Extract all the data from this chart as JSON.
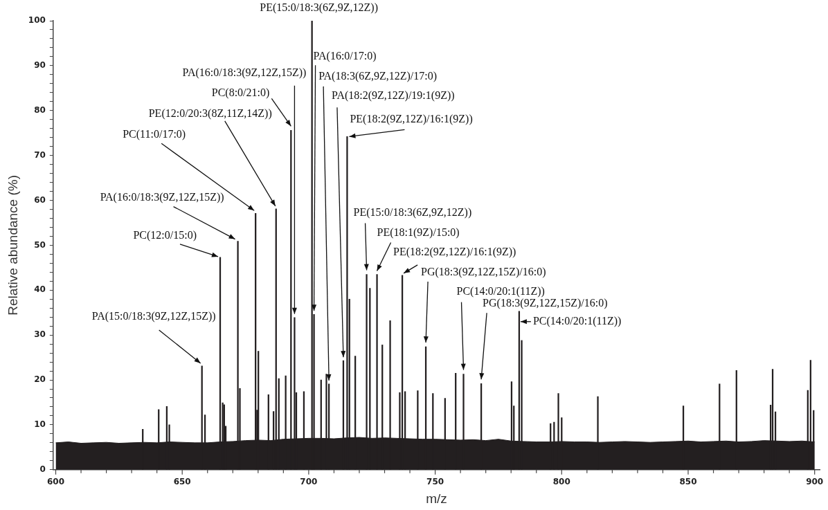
{
  "chart_data": {
    "type": "bar",
    "xlabel": "m/z",
    "ylabel": "Relative abundance (%)",
    "xlim": [
      599,
      902
    ],
    "ylim": [
      0,
      100
    ],
    "xticks": [
      600,
      {
        "value": 610,
        "label": null
      },
      {
        "value": 620,
        "label": null
      },
      {
        "value": 630,
        "label": null
      },
      {
        "value": 640,
        "label": null
      },
      650,
      {
        "value": 660,
        "label": null
      },
      {
        "value": 670,
        "label": null
      },
      {
        "value": 680,
        "label": null
      },
      {
        "value": 690,
        "label": null
      },
      700,
      {
        "value": 710,
        "label": null
      },
      {
        "value": 720,
        "label": null
      },
      {
        "value": 730,
        "label": null
      },
      {
        "value": 740,
        "label": null
      },
      750,
      {
        "value": 760,
        "label": null
      },
      {
        "value": 770,
        "label": null
      },
      {
        "value": 780,
        "label": null
      },
      {
        "value": 790,
        "label": null
      },
      800,
      {
        "value": 810,
        "label": null
      },
      {
        "value": 820,
        "label": null
      },
      {
        "value": 830,
        "label": null
      },
      {
        "value": 840,
        "label": null
      },
      850,
      {
        "value": 860,
        "label": null
      },
      {
        "value": 870,
        "label": null
      },
      {
        "value": 880,
        "label": null
      },
      {
        "value": 890,
        "label": null
      },
      900
    ],
    "yticks": [
      0,
      {
        "value": 2,
        "label": null
      },
      {
        "value": 4,
        "label": null
      },
      {
        "value": 6,
        "label": null
      },
      {
        "value": 8,
        "label": null
      },
      10,
      {
        "value": 12,
        "label": null
      },
      {
        "value": 14,
        "label": null
      },
      {
        "value": 16,
        "label": null
      },
      {
        "value": 18,
        "label": null
      },
      20,
      {
        "value": 22,
        "label": null
      },
      {
        "value": 24,
        "label": null
      },
      {
        "value": 26,
        "label": null
      },
      {
        "value": 28,
        "label": null
      },
      30,
      {
        "value": 32,
        "label": null
      },
      {
        "value": 34,
        "label": null
      },
      {
        "value": 36,
        "label": null
      },
      {
        "value": 38,
        "label": null
      },
      40,
      {
        "value": 42,
        "label": null
      },
      {
        "value": 44,
        "label": null
      },
      {
        "value": 46,
        "label": null
      },
      {
        "value": 48,
        "label": null
      },
      50,
      {
        "value": 52,
        "label": null
      },
      {
        "value": 54,
        "label": null
      },
      {
        "value": 56,
        "label": null
      },
      {
        "value": 58,
        "label": null
      },
      60,
      {
        "value": 62,
        "label": null
      },
      {
        "value": 64,
        "label": null
      },
      {
        "value": 66,
        "label": null
      },
      {
        "value": 68,
        "label": null
      },
      70,
      {
        "value": 72,
        "label": null
      },
      {
        "value": 74,
        "label": null
      },
      {
        "value": 76,
        "label": null
      },
      {
        "value": 78,
        "label": null
      },
      80,
      {
        "value": 82,
        "label": null
      },
      {
        "value": 84,
        "label": null
      },
      {
        "value": 86,
        "label": null
      },
      {
        "value": 88,
        "label": null
      },
      90,
      {
        "value": 92,
        "label": null
      },
      {
        "value": 94,
        "label": null
      },
      {
        "value": 96,
        "label": null
      },
      {
        "value": 98,
        "label": null
      },
      100
    ],
    "grid": false,
    "legend": false,
    "series": [
      {
        "type": "area",
        "color": "#231f20",
        "x": [
          600,
          605,
          610,
          615,
          620,
          625,
          630,
          635,
          640,
          645,
          650,
          655,
          660,
          665,
          670,
          675,
          680,
          685,
          690,
          695,
          700,
          705,
          710,
          715,
          720,
          725,
          730,
          735,
          740,
          745,
          750,
          755,
          760,
          765,
          770,
          775,
          780,
          785,
          790,
          795,
          800,
          805,
          810,
          815,
          820,
          825,
          830,
          835,
          840,
          845,
          850,
          855,
          860,
          865,
          870,
          875,
          880,
          885,
          890,
          895,
          900
        ],
        "values": [
          6.0,
          6.2,
          5.9,
          6.0,
          6.1,
          5.9,
          6.0,
          6.1,
          6.0,
          6.2,
          6.1,
          6.0,
          6.0,
          6.2,
          6.3,
          6.5,
          6.6,
          6.5,
          6.8,
          6.9,
          7.0,
          7.0,
          6.9,
          7.1,
          7.2,
          7.0,
          7.1,
          7.0,
          6.9,
          6.8,
          6.8,
          6.7,
          6.6,
          6.7,
          6.5,
          6.8,
          6.4,
          6.3,
          6.2,
          6.2,
          6.3,
          6.2,
          6.2,
          6.1,
          6.2,
          6.3,
          6.2,
          6.1,
          6.2,
          6.3,
          6.4,
          6.2,
          6.3,
          6.4,
          6.2,
          6.3,
          6.5,
          6.4,
          6.3,
          6.4,
          6.2
        ]
      },
      {
        "color": "#231f20",
        "x": [
          634.4,
          640.7,
          643.9,
          644.9,
          657.8,
          659.0,
          665.0,
          666.0,
          666.6,
          667.2,
          672.0,
          672.8,
          679.0,
          679.6,
          680.1,
          684.1,
          686.1,
          687.1,
          688.2,
          690.9,
          693.0,
          694.4,
          695.1,
          698.1,
          701.3,
          702.1,
          704.9,
          707.0,
          708.0,
          713.7,
          715.2,
          716.1,
          718.4,
          722.9,
          724.2,
          727.0,
          729.1,
          732.2,
          736.0,
          737.0,
          738.1,
          743.1,
          746.3,
          749.1,
          753.9,
          758.1,
          761.2,
          768.2,
          780.2,
          781.1,
          783.2,
          784.2,
          795.6,
          797.0,
          798.7,
          800.0,
          814.3,
          848.1,
          862.4,
          869.1,
          882.6,
          883.4,
          884.5,
          897.3,
          898.4,
          899.6
        ],
        "values": [
          9,
          13.4,
          14.1,
          10,
          23.1,
          12.2,
          47.3,
          14.9,
          14.5,
          9.7,
          50.9,
          18.1,
          57.1,
          13.3,
          26.4,
          16.7,
          13,
          58.1,
          20.3,
          20.9,
          75.6,
          33.9,
          17.2,
          17.4,
          100,
          34.6,
          20,
          21.3,
          19.1,
          24.3,
          74.2,
          38,
          25.3,
          43.5,
          40.4,
          43.5,
          27.8,
          33.2,
          17.2,
          43.3,
          17.4,
          17.6,
          27.4,
          17,
          15.9,
          21.5,
          21.3,
          19.2,
          19.6,
          14.2,
          35.3,
          28.8,
          10.3,
          10.6,
          17,
          11.6,
          16.3,
          14.2,
          19.1,
          22.1,
          14.4,
          22.4,
          12.9,
          17.7,
          24.4,
          13.2
        ]
      }
    ],
    "annotations": [
      {
        "text": "PE(15:0/18:3(6Z,9Z,12Z))",
        "x": 701.3,
        "y": 100
      },
      {
        "text": "PA(16:0/17:0)",
        "x": 702.1,
        "y": 34.6
      },
      {
        "text": "PA(18:3(6Z,9Z,12Z)/17:0)",
        "x": 708.0,
        "y": 19.1
      },
      {
        "text": "PA(18:2(9Z,12Z)/19:1(9Z))",
        "x": 713.7,
        "y": 24.3
      },
      {
        "text": "PE(18:2(9Z,12Z)/16:1(9Z))",
        "x": 715.2,
        "y": 74.2
      },
      {
        "text": "PA(16:0/18:3(9Z,12Z,15Z))",
        "x": 694.4,
        "y": 33.9
      },
      {
        "text": "PC(8:0/21:0)",
        "x": 693.0,
        "y": 75.6
      },
      {
        "text": "PE(12:0/20:3(8Z,11Z,14Z))",
        "x": 687.1,
        "y": 58.1
      },
      {
        "text": "PC(11:0/17:0)",
        "x": 679.0,
        "y": 57.1
      },
      {
        "text": "PA(16:0/18:3(9Z,12Z,15Z))",
        "x": 672.0,
        "y": 50.9
      },
      {
        "text": "PC(12:0/15:0)",
        "x": 665.0,
        "y": 47.3
      },
      {
        "text": "PA(15:0/18:3(9Z,12Z,15Z))",
        "x": 657.8,
        "y": 23.1
      },
      {
        "text": "PE(15:0/18:3(6Z,9Z,12Z))",
        "x": 722.9,
        "y": 43.5
      },
      {
        "text": "PE(18:1(9Z)/15:0)",
        "x": 727.0,
        "y": 43.5
      },
      {
        "text": "PE(18:2(9Z,12Z)/16:1(9Z))",
        "x": 737.0,
        "y": 43.3
      },
      {
        "text": "PG(18:3(9Z,12Z,15Z)/16:0)",
        "x": 746.3,
        "y": 27.4
      },
      {
        "text": "PC(14:0/20:1(11Z))",
        "x": 761.2,
        "y": 21.3
      },
      {
        "text": "PG(18:3(9Z,12Z,15Z)/16:0)",
        "x": 768.2,
        "y": 19.2
      },
      {
        "text": "PC(14:0/20:1(11Z))",
        "x": 783.2,
        "y": 35.3
      }
    ]
  }
}
